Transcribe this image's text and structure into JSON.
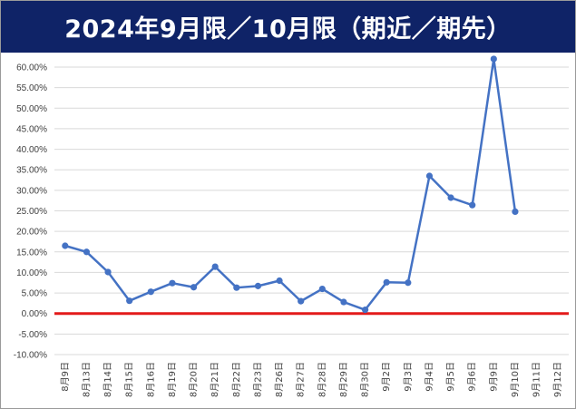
{
  "title": "2024年9月限／10月限（期近／期先）",
  "colors": {
    "title_bg": "#0f2367",
    "title_text": "#ffffff",
    "line": "#4472c4",
    "zero_line": "#e31a1a",
    "grid": "#d9d9d9",
    "axis_text": "#404040"
  },
  "chart_data": {
    "type": "line",
    "title": "2024年9月限／10月限（期近／期先）",
    "xlabel": "",
    "ylabel": "",
    "ylim": [
      -10,
      60
    ],
    "y_unit": "%",
    "grid": "horizontal",
    "legend": "none",
    "y_ticks": [
      "60.00%",
      "55.00%",
      "50.00%",
      "45.00%",
      "40.00%",
      "35.00%",
      "30.00%",
      "25.00%",
      "20.00%",
      "15.00%",
      "10.00%",
      "5.00%",
      "0.00%",
      "-5.00%",
      "-10.00%"
    ],
    "y_tick_values": [
      60,
      55,
      50,
      45,
      40,
      35,
      30,
      25,
      20,
      15,
      10,
      5,
      0,
      -5,
      -10
    ],
    "categories": [
      "8月9日",
      "8月13日",
      "8月14日",
      "8月15日",
      "8月16日",
      "8月19日",
      "8月20日",
      "8月21日",
      "8月22日",
      "8月23日",
      "8月26日",
      "8月27日",
      "8月28日",
      "8月29日",
      "8月30日",
      "9月2日",
      "9月3日",
      "9月4日",
      "9月5日",
      "9月6日",
      "9月9日",
      "9月10日",
      "9月11日",
      "9月12日"
    ],
    "series": [
      {
        "values": [
          16.5,
          15.0,
          10.1,
          3.1,
          5.3,
          7.4,
          6.4,
          11.4,
          6.3,
          6.7,
          8.0,
          3.0,
          6.0,
          2.8,
          0.9,
          7.6,
          7.5,
          33.5,
          28.2,
          26.4,
          62.0,
          24.8,
          null,
          null
        ]
      }
    ],
    "reference_line": {
      "y": 0,
      "color": "#e31a1a"
    }
  }
}
